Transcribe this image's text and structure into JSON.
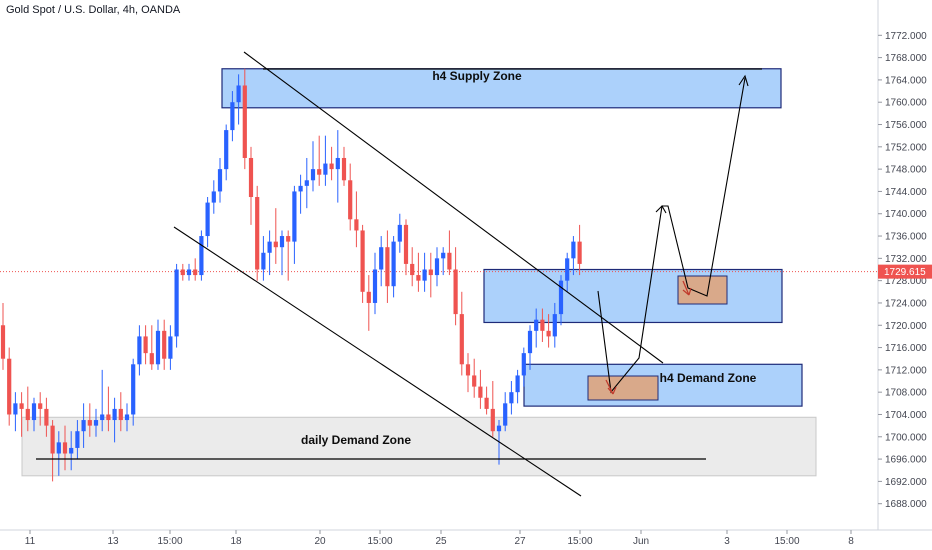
{
  "header": {
    "title": "Gold Spot / U.S. Dollar, 4h, OANDA"
  },
  "chart_data": {
    "type": "candlestick",
    "symbol_title": "Gold Spot / U.S. Dollar, 4h, OANDA",
    "ylim": [
      1684,
      1776
    ],
    "y_ticks": [
      1688,
      1692,
      1696,
      1700,
      1704,
      1708,
      1712,
      1716,
      1720,
      1724,
      1728,
      1732,
      1736,
      1740,
      1744,
      1748,
      1752,
      1756,
      1760,
      1764,
      1768,
      1772
    ],
    "x_ticks": [
      "11",
      "13",
      "15:00",
      "18",
      "20",
      "15:00",
      "25",
      "27",
      "15:00",
      "Jun",
      "3",
      "15:00",
      "8"
    ],
    "current_price": {
      "label": "1729.615",
      "value": 1729.615,
      "color": "#ef5350"
    },
    "colors": {
      "up": "#2962ff",
      "down": "#ef5350",
      "supply_zone": "#90c2f9",
      "demand_zone": "#90c2f9",
      "daily_zone": "#e1e1e1",
      "projection_box": "#d9a98a"
    },
    "zones": [
      {
        "name": "h4 Supply Zone",
        "label": "h4 Supply Zone",
        "top": 1766,
        "bottom": 1759
      },
      {
        "name": "h4 Demand Zone",
        "label": "h4 Demand Zone",
        "top": 1713,
        "bottom": 1705.5
      },
      {
        "name": "h4 zone middle",
        "label": "",
        "top": 1730,
        "bottom": 1720.5
      },
      {
        "name": "daily Demand Zone",
        "label": "daily Demand Zone",
        "top": 1703.5,
        "bottom": 1693
      }
    ],
    "candles": [
      {
        "o": 1720,
        "h": 1724,
        "l": 1712,
        "c": 1714
      },
      {
        "o": 1714,
        "h": 1716,
        "l": 1702,
        "c": 1704
      },
      {
        "o": 1704,
        "h": 1708,
        "l": 1701,
        "c": 1706
      },
      {
        "o": 1706,
        "h": 1708,
        "l": 1700,
        "c": 1705
      },
      {
        "o": 1705,
        "h": 1709,
        "l": 1701,
        "c": 1703
      },
      {
        "o": 1703,
        "h": 1707,
        "l": 1701,
        "c": 1706
      },
      {
        "o": 1706,
        "h": 1708,
        "l": 1702,
        "c": 1705
      },
      {
        "o": 1705,
        "h": 1707,
        "l": 1700,
        "c": 1702
      },
      {
        "o": 1702,
        "h": 1703,
        "l": 1692,
        "c": 1697
      },
      {
        "o": 1697,
        "h": 1701,
        "l": 1693,
        "c": 1699
      },
      {
        "o": 1699,
        "h": 1702,
        "l": 1694,
        "c": 1697
      },
      {
        "o": 1697,
        "h": 1701,
        "l": 1694,
        "c": 1698
      },
      {
        "o": 1698,
        "h": 1703,
        "l": 1696,
        "c": 1701
      },
      {
        "o": 1701,
        "h": 1706,
        "l": 1698,
        "c": 1703
      },
      {
        "o": 1703,
        "h": 1706,
        "l": 1700,
        "c": 1702
      },
      {
        "o": 1702,
        "h": 1705,
        "l": 1700,
        "c": 1703
      },
      {
        "o": 1703,
        "h": 1712,
        "l": 1701,
        "c": 1704
      },
      {
        "o": 1704,
        "h": 1709,
        "l": 1701,
        "c": 1703
      },
      {
        "o": 1703,
        "h": 1707,
        "l": 1699,
        "c": 1705
      },
      {
        "o": 1705,
        "h": 1708,
        "l": 1701,
        "c": 1703
      },
      {
        "o": 1703,
        "h": 1706,
        "l": 1701,
        "c": 1704
      },
      {
        "o": 1704,
        "h": 1714,
        "l": 1702,
        "c": 1713
      },
      {
        "o": 1713,
        "h": 1720,
        "l": 1711,
        "c": 1718
      },
      {
        "o": 1718,
        "h": 1720,
        "l": 1713,
        "c": 1715
      },
      {
        "o": 1715,
        "h": 1720,
        "l": 1712,
        "c": 1713
      },
      {
        "o": 1713,
        "h": 1721,
        "l": 1712,
        "c": 1719
      },
      {
        "o": 1719,
        "h": 1721,
        "l": 1712,
        "c": 1714
      },
      {
        "o": 1714,
        "h": 1720,
        "l": 1712,
        "c": 1718
      },
      {
        "o": 1718,
        "h": 1731,
        "l": 1716,
        "c": 1730
      },
      {
        "o": 1730,
        "h": 1731,
        "l": 1728,
        "c": 1729
      },
      {
        "o": 1729,
        "h": 1731,
        "l": 1728,
        "c": 1730
      },
      {
        "o": 1730,
        "h": 1732,
        "l": 1728,
        "c": 1729
      },
      {
        "o": 1729,
        "h": 1737,
        "l": 1728,
        "c": 1736
      },
      {
        "o": 1736,
        "h": 1743,
        "l": 1734,
        "c": 1742
      },
      {
        "o": 1742,
        "h": 1746,
        "l": 1740,
        "c": 1744
      },
      {
        "o": 1744,
        "h": 1750,
        "l": 1742,
        "c": 1748
      },
      {
        "o": 1748,
        "h": 1756,
        "l": 1746,
        "c": 1755
      },
      {
        "o": 1755,
        "h": 1762,
        "l": 1753,
        "c": 1760
      },
      {
        "o": 1760,
        "h": 1765,
        "l": 1756,
        "c": 1763
      },
      {
        "o": 1763,
        "h": 1766,
        "l": 1748,
        "c": 1750
      },
      {
        "o": 1750,
        "h": 1752,
        "l": 1738,
        "c": 1743
      },
      {
        "o": 1743,
        "h": 1745,
        "l": 1728,
        "c": 1730
      },
      {
        "o": 1730,
        "h": 1736,
        "l": 1728,
        "c": 1733
      },
      {
        "o": 1733,
        "h": 1737,
        "l": 1729,
        "c": 1735
      },
      {
        "o": 1735,
        "h": 1741,
        "l": 1731,
        "c": 1734
      },
      {
        "o": 1734,
        "h": 1737,
        "l": 1729,
        "c": 1736
      },
      {
        "o": 1736,
        "h": 1737,
        "l": 1728,
        "c": 1735
      },
      {
        "o": 1735,
        "h": 1745,
        "l": 1731,
        "c": 1744
      },
      {
        "o": 1744,
        "h": 1747,
        "l": 1740,
        "c": 1745
      },
      {
        "o": 1745,
        "h": 1750,
        "l": 1741,
        "c": 1746
      },
      {
        "o": 1746,
        "h": 1753,
        "l": 1744,
        "c": 1748
      },
      {
        "o": 1748,
        "h": 1754,
        "l": 1745,
        "c": 1747
      },
      {
        "o": 1747,
        "h": 1754,
        "l": 1745,
        "c": 1749
      },
      {
        "o": 1749,
        "h": 1752,
        "l": 1746,
        "c": 1748
      },
      {
        "o": 1748,
        "h": 1755,
        "l": 1742,
        "c": 1750
      },
      {
        "o": 1750,
        "h": 1752,
        "l": 1745,
        "c": 1746
      },
      {
        "o": 1746,
        "h": 1749,
        "l": 1737,
        "c": 1739
      },
      {
        "o": 1739,
        "h": 1744,
        "l": 1734,
        "c": 1737
      },
      {
        "o": 1737,
        "h": 1738,
        "l": 1724,
        "c": 1726
      },
      {
        "o": 1726,
        "h": 1729,
        "l": 1719,
        "c": 1724
      },
      {
        "o": 1724,
        "h": 1733,
        "l": 1722,
        "c": 1730
      },
      {
        "o": 1730,
        "h": 1736,
        "l": 1727,
        "c": 1734
      },
      {
        "o": 1734,
        "h": 1737,
        "l": 1724,
        "c": 1727
      },
      {
        "o": 1727,
        "h": 1736,
        "l": 1725,
        "c": 1735
      },
      {
        "o": 1735,
        "h": 1740,
        "l": 1733,
        "c": 1738
      },
      {
        "o": 1738,
        "h": 1739,
        "l": 1729,
        "c": 1731
      },
      {
        "o": 1731,
        "h": 1734,
        "l": 1727,
        "c": 1729
      },
      {
        "o": 1729,
        "h": 1733,
        "l": 1726,
        "c": 1728
      },
      {
        "o": 1728,
        "h": 1733,
        "l": 1726,
        "c": 1730
      },
      {
        "o": 1730,
        "h": 1733,
        "l": 1725,
        "c": 1729
      },
      {
        "o": 1729,
        "h": 1734,
        "l": 1727,
        "c": 1732
      },
      {
        "o": 1732,
        "h": 1734,
        "l": 1729,
        "c": 1733
      },
      {
        "o": 1733,
        "h": 1737,
        "l": 1729,
        "c": 1730
      },
      {
        "o": 1730,
        "h": 1734,
        "l": 1720,
        "c": 1722
      },
      {
        "o": 1722,
        "h": 1726,
        "l": 1711,
        "c": 1713
      },
      {
        "o": 1713,
        "h": 1715,
        "l": 1708,
        "c": 1711
      },
      {
        "o": 1711,
        "h": 1714,
        "l": 1707,
        "c": 1709
      },
      {
        "o": 1709,
        "h": 1712,
        "l": 1705,
        "c": 1707
      },
      {
        "o": 1707,
        "h": 1709,
        "l": 1704,
        "c": 1705
      },
      {
        "o": 1705,
        "h": 1710,
        "l": 1700,
        "c": 1701
      },
      {
        "o": 1701,
        "h": 1703,
        "l": 1695,
        "c": 1702
      },
      {
        "o": 1702,
        "h": 1708,
        "l": 1701,
        "c": 1706
      },
      {
        "o": 1706,
        "h": 1710,
        "l": 1704,
        "c": 1708
      },
      {
        "o": 1708,
        "h": 1712,
        "l": 1706,
        "c": 1711
      },
      {
        "o": 1711,
        "h": 1716,
        "l": 1709,
        "c": 1715
      },
      {
        "o": 1715,
        "h": 1720,
        "l": 1712,
        "c": 1719
      },
      {
        "o": 1719,
        "h": 1723,
        "l": 1716,
        "c": 1721
      },
      {
        "o": 1721,
        "h": 1723,
        "l": 1717,
        "c": 1719
      },
      {
        "o": 1719,
        "h": 1722,
        "l": 1716,
        "c": 1718
      },
      {
        "o": 1718,
        "h": 1724,
        "l": 1716,
        "c": 1722
      },
      {
        "o": 1722,
        "h": 1729,
        "l": 1720,
        "c": 1728
      },
      {
        "o": 1728,
        "h": 1733,
        "l": 1726,
        "c": 1732
      },
      {
        "o": 1732,
        "h": 1736,
        "l": 1729,
        "c": 1735
      },
      {
        "o": 1735,
        "h": 1738,
        "l": 1729,
        "c": 1731
      }
    ]
  }
}
